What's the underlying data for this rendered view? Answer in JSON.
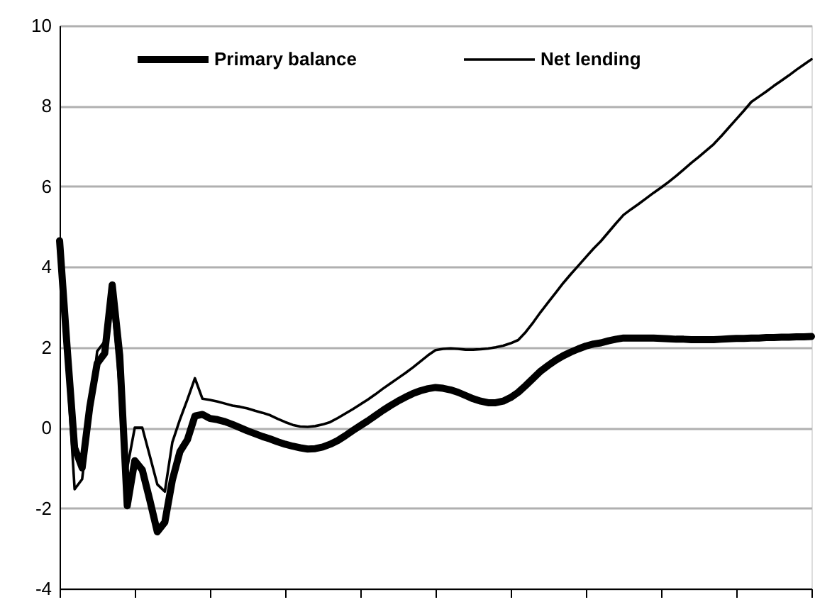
{
  "chart_data": {
    "type": "line",
    "categories": [
      null,
      null,
      null,
      null,
      null,
      null,
      null,
      null,
      null,
      null,
      null,
      null,
      null,
      null,
      null,
      null,
      null,
      null,
      null,
      null,
      null,
      null,
      null,
      null,
      null,
      null,
      null,
      null,
      null,
      null,
      null,
      null,
      null,
      null,
      null,
      null,
      null,
      null,
      null,
      null,
      null,
      null,
      null,
      null,
      null,
      null,
      null,
      null,
      null,
      null,
      null,
      null,
      null,
      null,
      null,
      null,
      null,
      null,
      null,
      null,
      null,
      null,
      null,
      null,
      null,
      null,
      null,
      null,
      null,
      null,
      null,
      null,
      null,
      null,
      null,
      null,
      null,
      null,
      null,
      null,
      null,
      null,
      null,
      null,
      null,
      null,
      null,
      null,
      null,
      null,
      null,
      null,
      null,
      null,
      null,
      null,
      null,
      null,
      null,
      null,
      null
    ],
    "ylim": [
      -4,
      10
    ],
    "yticks": [
      -4,
      -2,
      0,
      2,
      4,
      6,
      8,
      10
    ],
    "tick_labels": "y",
    "grid": "y",
    "legend": "top",
    "marker": "none",
    "line_style": "solid",
    "series": [
      {
        "name": "Primary balance",
        "color": "#000000",
        "values": [
          4.65,
          2.0,
          -0.5,
          -1.0,
          0.5,
          1.6,
          1.85,
          3.55,
          1.8,
          -1.94,
          -0.82,
          -1.05,
          -1.8,
          -2.59,
          -2.35,
          -1.3,
          -0.6,
          -0.3,
          0.29,
          0.33,
          0.23,
          0.2,
          0.15,
          0.08,
          0.0,
          -0.08,
          -0.15,
          -0.22,
          -0.28,
          -0.35,
          -0.41,
          -0.46,
          -0.5,
          -0.53,
          -0.52,
          -0.48,
          -0.41,
          -0.32,
          -0.2,
          -0.07,
          0.05,
          0.17,
          0.3,
          0.43,
          0.55,
          0.66,
          0.76,
          0.85,
          0.92,
          0.97,
          1.0,
          0.98,
          0.94,
          0.88,
          0.8,
          0.72,
          0.66,
          0.62,
          0.62,
          0.66,
          0.75,
          0.88,
          1.05,
          1.23,
          1.41,
          1.55,
          1.68,
          1.79,
          1.88,
          1.96,
          2.03,
          2.08,
          2.11,
          2.16,
          2.2,
          2.23,
          2.23,
          2.23,
          2.23,
          2.23,
          2.22,
          2.21,
          2.2,
          2.2,
          2.19,
          2.19,
          2.19,
          2.19,
          2.2,
          2.21,
          2.22,
          2.22,
          2.23,
          2.23,
          2.24,
          2.24,
          2.25,
          2.25,
          2.26,
          2.26,
          2.27
        ]
      },
      {
        "name": "Net lending",
        "color": "#000000",
        "values": [
          4.6,
          1.5,
          -1.53,
          -1.28,
          0.3,
          1.9,
          2.15,
          3.1,
          1.0,
          -1.0,
          0.0,
          0.0,
          -0.7,
          -1.41,
          -1.59,
          -0.36,
          0.2,
          0.7,
          1.23,
          0.72,
          0.69,
          0.65,
          0.6,
          0.55,
          0.52,
          0.48,
          0.42,
          0.37,
          0.31,
          0.22,
          0.14,
          0.07,
          0.03,
          0.02,
          0.04,
          0.08,
          0.14,
          0.24,
          0.35,
          0.46,
          0.58,
          0.7,
          0.83,
          0.97,
          1.1,
          1.23,
          1.36,
          1.5,
          1.65,
          1.8,
          1.93,
          1.96,
          1.97,
          1.96,
          1.94,
          1.94,
          1.95,
          1.97,
          2.0,
          2.04,
          2.1,
          2.18,
          2.38,
          2.62,
          2.88,
          3.12,
          3.36,
          3.6,
          3.82,
          4.03,
          4.24,
          4.45,
          4.64,
          4.86,
          5.08,
          5.29,
          5.43,
          5.56,
          5.7,
          5.84,
          5.97,
          6.11,
          6.26,
          6.42,
          6.58,
          6.73,
          6.89,
          7.05,
          7.25,
          7.46,
          7.67,
          7.88,
          8.1,
          8.23,
          8.36,
          8.5,
          8.63,
          8.76,
          8.9,
          9.03,
          9.16
        ]
      }
    ]
  }
}
